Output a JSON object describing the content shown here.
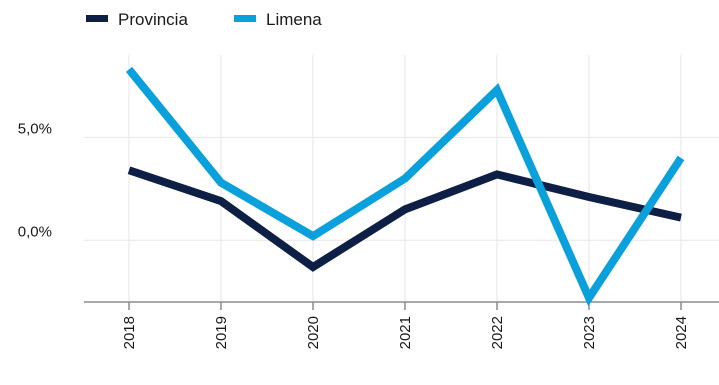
{
  "chart_data": {
    "type": "line",
    "categories": [
      "2018",
      "2019",
      "2020",
      "2021",
      "2022",
      "2023",
      "2024"
    ],
    "series": [
      {
        "name": "Provincia",
        "color": "#0d1f45",
        "values": [
          3.4,
          1.9,
          -1.3,
          1.5,
          3.2,
          2.1,
          1.1
        ]
      },
      {
        "name": "Limena",
        "color": "#0aa0dc",
        "values": [
          8.3,
          2.8,
          0.2,
          3.0,
          7.3,
          -2.8,
          4.0
        ]
      }
    ],
    "yticks": [
      0,
      5
    ],
    "ytick_labels": [
      "0,0%",
      "5,0%"
    ],
    "ylim": [
      -3.0,
      9.0
    ],
    "grid": true,
    "legend_position": "top-left"
  }
}
